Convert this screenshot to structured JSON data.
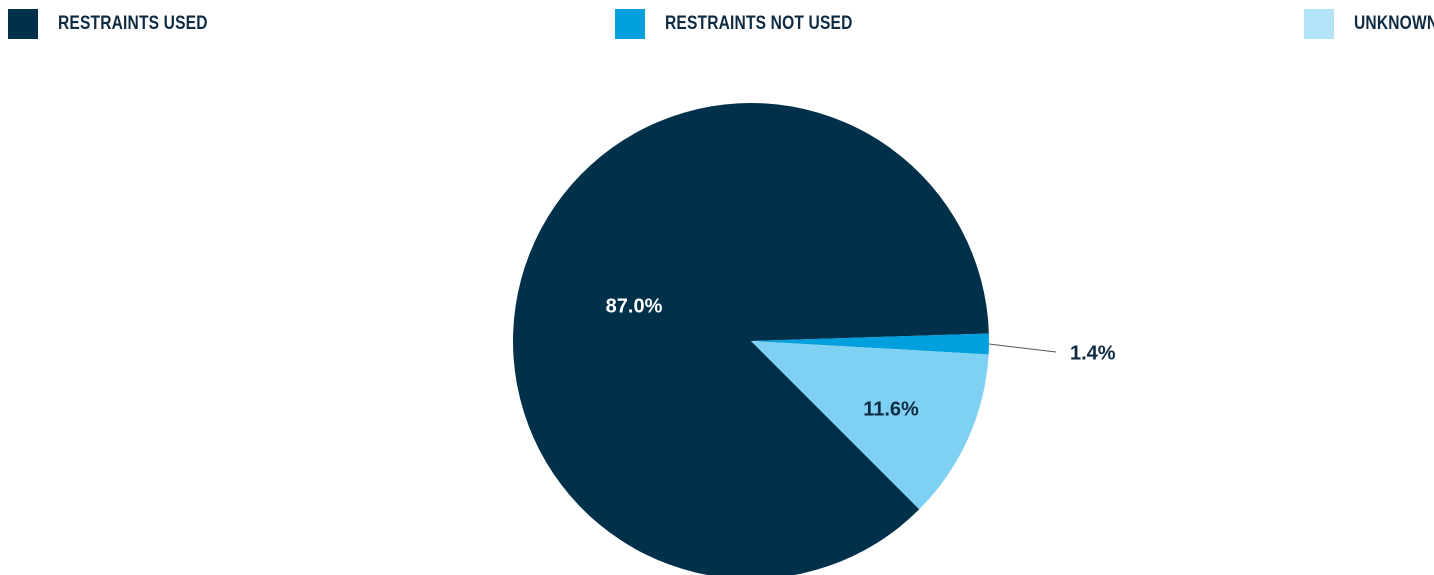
{
  "chart_data": {
    "type": "pie",
    "legend_position": "top",
    "series": [
      {
        "name": "RESTRAINTS USED",
        "value": 87.0,
        "label": "87.0%",
        "color": "#01304a",
        "label_color": "#ffffff"
      },
      {
        "name": "RESTRAINTS NOT USED",
        "value": 1.4,
        "label": "1.4%",
        "color": "#00a0de",
        "label_color": "#0d2b42"
      },
      {
        "name": "UNKNOWN",
        "value": 11.6,
        "label": "11.6%",
        "color": "#7fd1f3",
        "label_color": "#0d2b42"
      }
    ]
  },
  "legend_swatch_colors": [
    "#01304a",
    "#00a0de",
    "#b3e3f8"
  ]
}
